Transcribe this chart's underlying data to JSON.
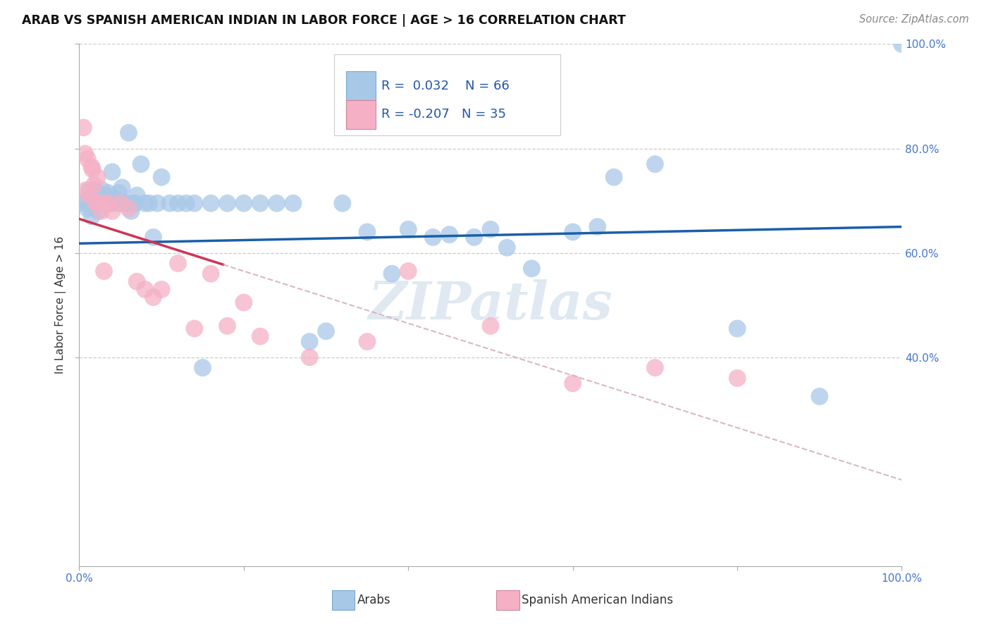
{
  "title": "ARAB VS SPANISH AMERICAN INDIAN IN LABOR FORCE | AGE > 16 CORRELATION CHART",
  "source": "Source: ZipAtlas.com",
  "ylabel": "In Labor Force | Age > 16",
  "xlim": [
    0,
    1.0
  ],
  "ylim": [
    0,
    1.0
  ],
  "arab_color": "#a8c8e8",
  "arab_line_color": "#1a5fa8",
  "spanish_color": "#f5b0c5",
  "spanish_line_color": "#d03355",
  "spanish_dash_color": "#d8b0bc",
  "background_color": "#ffffff",
  "watermark": "ZIPatlas",
  "watermark_color": "#c8d8e8",
  "R_arab": 0.032,
  "N_arab": 66,
  "R_spanish": -0.207,
  "N_spanish": 35,
  "gridline_color": "#cccccc",
  "gridline_y": [
    0.4,
    0.6,
    0.8,
    1.0
  ],
  "arab_x": [
    0.005,
    0.008,
    0.01,
    0.012,
    0.015,
    0.016,
    0.018,
    0.02,
    0.022,
    0.023,
    0.025,
    0.027,
    0.028,
    0.03,
    0.032,
    0.035,
    0.038,
    0.04,
    0.042,
    0.045,
    0.048,
    0.05,
    0.052,
    0.055,
    0.058,
    0.06,
    0.063,
    0.065,
    0.068,
    0.07,
    0.075,
    0.08,
    0.085,
    0.09,
    0.095,
    0.1,
    0.11,
    0.12,
    0.13,
    0.14,
    0.15,
    0.16,
    0.18,
    0.2,
    0.22,
    0.24,
    0.26,
    0.28,
    0.3,
    0.32,
    0.35,
    0.38,
    0.4,
    0.43,
    0.45,
    0.48,
    0.5,
    0.52,
    0.55,
    0.6,
    0.63,
    0.65,
    0.7,
    0.8,
    0.9,
    1.0
  ],
  "arab_y": [
    0.695,
    0.7,
    0.685,
    0.72,
    0.67,
    0.695,
    0.71,
    0.72,
    0.695,
    0.68,
    0.705,
    0.71,
    0.72,
    0.695,
    0.71,
    0.715,
    0.695,
    0.755,
    0.695,
    0.7,
    0.715,
    0.695,
    0.725,
    0.695,
    0.695,
    0.83,
    0.68,
    0.695,
    0.695,
    0.71,
    0.77,
    0.695,
    0.695,
    0.63,
    0.695,
    0.745,
    0.695,
    0.695,
    0.695,
    0.695,
    0.38,
    0.695,
    0.695,
    0.695,
    0.695,
    0.695,
    0.695,
    0.43,
    0.45,
    0.695,
    0.64,
    0.56,
    0.645,
    0.63,
    0.635,
    0.63,
    0.645,
    0.61,
    0.57,
    0.64,
    0.65,
    0.745,
    0.77,
    0.455,
    0.325,
    1.0
  ],
  "spanish_x": [
    0.005,
    0.007,
    0.008,
    0.01,
    0.012,
    0.015,
    0.016,
    0.018,
    0.02,
    0.022,
    0.025,
    0.027,
    0.03,
    0.03,
    0.035,
    0.04,
    0.05,
    0.06,
    0.07,
    0.08,
    0.09,
    0.1,
    0.12,
    0.14,
    0.16,
    0.18,
    0.2,
    0.22,
    0.28,
    0.35,
    0.4,
    0.5,
    0.6,
    0.7,
    0.8
  ],
  "spanish_y": [
    0.84,
    0.79,
    0.72,
    0.78,
    0.71,
    0.765,
    0.76,
    0.73,
    0.695,
    0.745,
    0.695,
    0.68,
    0.695,
    0.565,
    0.695,
    0.68,
    0.695,
    0.685,
    0.545,
    0.53,
    0.515,
    0.53,
    0.58,
    0.455,
    0.56,
    0.46,
    0.505,
    0.44,
    0.4,
    0.43,
    0.565,
    0.46,
    0.35,
    0.38,
    0.36
  ],
  "legend_labels": [
    "Arabs",
    "Spanish American Indians"
  ],
  "title_fontsize": 12.5,
  "source_fontsize": 10.5,
  "tick_fontsize": 11,
  "ylabel_fontsize": 11,
  "legend_fontsize": 13
}
